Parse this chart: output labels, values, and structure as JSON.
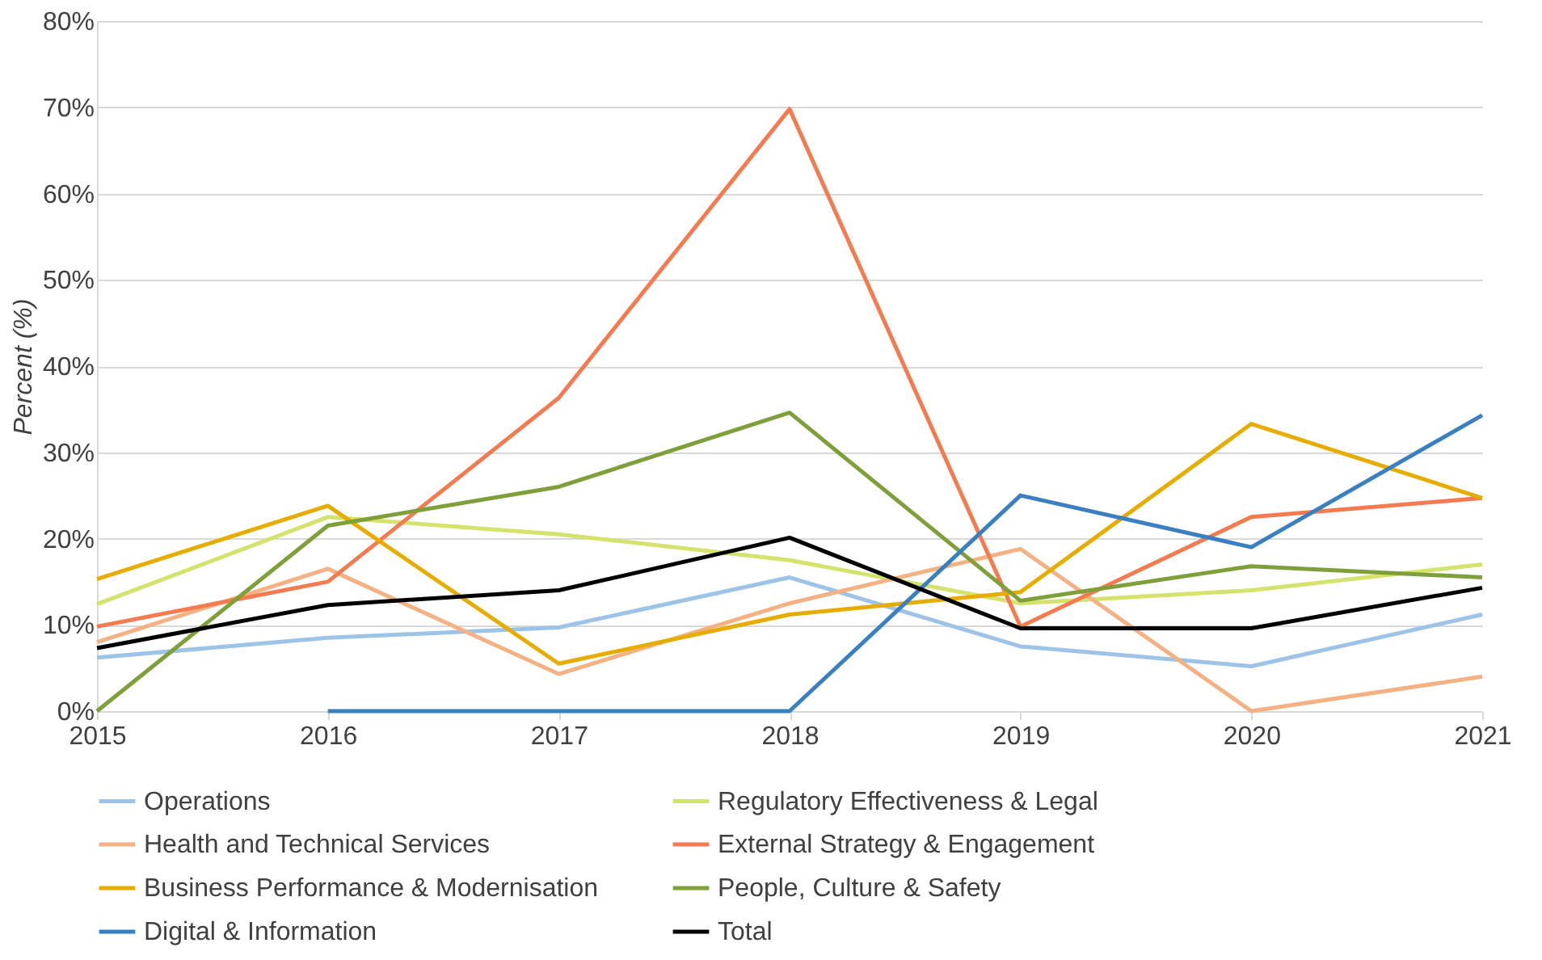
{
  "chart_data": {
    "type": "line",
    "ylabel": "Percent (%)",
    "x": [
      2015,
      2016,
      2017,
      2018,
      2019,
      2020,
      2021
    ],
    "xlim": [
      2015,
      2021
    ],
    "xticks": [
      2015,
      2016,
      2017,
      2018,
      2019,
      2020,
      2021
    ],
    "ylim": [
      0,
      80
    ],
    "yticks": [
      {
        "value": 0,
        "label": "0%"
      },
      {
        "value": 10,
        "label": "10%"
      },
      {
        "value": 20,
        "label": "20%"
      },
      {
        "value": 30,
        "label": "30%"
      },
      {
        "value": 40,
        "label": "40%"
      },
      {
        "value": 50,
        "label": "50%"
      },
      {
        "value": 60,
        "label": "60%"
      },
      {
        "value": 70,
        "label": "70%"
      },
      {
        "value": 80,
        "label": "80%"
      }
    ],
    "grid": "y",
    "legend": "bottom",
    "marker": "none",
    "line_style": "solid",
    "series": [
      {
        "name": "Operations",
        "color": "#9dc3e6",
        "values": [
          6.2,
          8.5,
          9.7,
          15.5,
          7.5,
          5.2,
          11.2
        ]
      },
      {
        "name": "Regulatory Effectiveness & Legal",
        "color": "#d4e36b",
        "values": [
          12.4,
          22.5,
          20.5,
          17.5,
          12.5,
          14,
          17
        ]
      },
      {
        "name": "Health and Technical Services",
        "color": "#f4b183",
        "values": [
          8,
          16.5,
          4.3,
          12.5,
          18.8,
          0,
          4
        ]
      },
      {
        "name": "External Strategy & Engagement",
        "color": "#f47b4f",
        "values": [
          9.8,
          15,
          36.3,
          69.8,
          9.8,
          22.5,
          24.7
        ]
      },
      {
        "name": "Business Performance & Modernisation",
        "color": "#e6ad00",
        "values": [
          15.3,
          23.8,
          5.5,
          11.2,
          13.8,
          33.3,
          24.7
        ]
      },
      {
        "name": "People, Culture & Safety",
        "color": "#7f9f3a",
        "values": [
          0,
          21.5,
          26,
          34.6,
          12.8,
          16.8,
          15.5
        ]
      },
      {
        "name": "Digital & Information",
        "color": "#3a7fc0",
        "values": [
          null,
          0,
          0,
          0,
          25,
          19,
          34.3
        ]
      },
      {
        "name": "Total",
        "color": "#000000",
        "values": [
          7.3,
          12.3,
          14,
          20.1,
          9.6,
          9.6,
          14.3
        ]
      }
    ]
  }
}
